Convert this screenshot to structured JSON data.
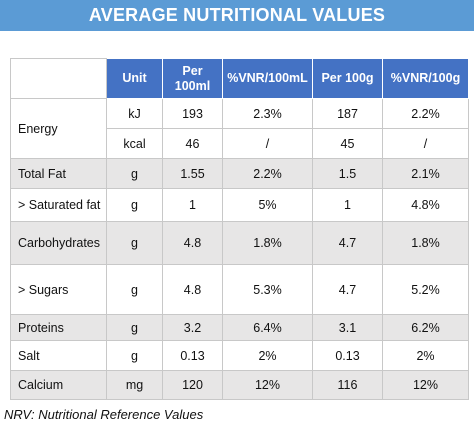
{
  "title": "AVERAGE NUTRITIONAL VALUES",
  "headers": {
    "unit": "Unit",
    "per100ml_line1": "Per",
    "per100ml_line2": "100ml",
    "vnr100ml": "%VNR/100mL",
    "per100g": "Per 100g",
    "vnr100g": "%VNR/100g"
  },
  "rows": {
    "energy": {
      "name": "Energy",
      "kj": {
        "unit": "kJ",
        "per100ml": "193",
        "vnr100ml": "2.3%",
        "per100g": "187",
        "vnr100g": "2.2%"
      },
      "kcal": {
        "unit": "kcal",
        "per100ml": "46",
        "vnr100ml": "/",
        "per100g": "45",
        "vnr100g": "/"
      }
    },
    "total_fat": {
      "name": "Total Fat",
      "unit": "g",
      "per100ml": "1.55",
      "vnr100ml": "2.2%",
      "per100g": "1.5",
      "vnr100g": "2.1%"
    },
    "saturated_fat": {
      "name": "> Saturated fat",
      "unit": "g",
      "per100ml": "1",
      "vnr100ml": "5%",
      "per100g": "1",
      "vnr100g": "4.8%"
    },
    "carbohydrates": {
      "name": "Carbohydrates",
      "unit": "g",
      "per100ml": "4.8",
      "vnr100ml": "1.8%",
      "per100g": "4.7",
      "vnr100g": "1.8%"
    },
    "sugars": {
      "name": "> Sugars",
      "unit": "g",
      "per100ml": "4.8",
      "vnr100ml": "5.3%",
      "per100g": "4.7",
      "vnr100g": "5.2%"
    },
    "proteins": {
      "name": "Proteins",
      "unit": "g",
      "per100ml": "3.2",
      "vnr100ml": "6.4%",
      "per100g": "3.1",
      "vnr100g": "6.2%"
    },
    "salt": {
      "name": "Salt",
      "unit": "g",
      "per100ml": "0.13",
      "vnr100ml": "2%",
      "per100g": "0.13",
      "vnr100g": "2%"
    },
    "calcium": {
      "name": "Calcium",
      "unit": "mg",
      "per100ml": "120",
      "vnr100ml": "12%",
      "per100g": "116",
      "vnr100g": "12%"
    }
  },
  "footnote": "NRV: Nutritional Reference Values"
}
